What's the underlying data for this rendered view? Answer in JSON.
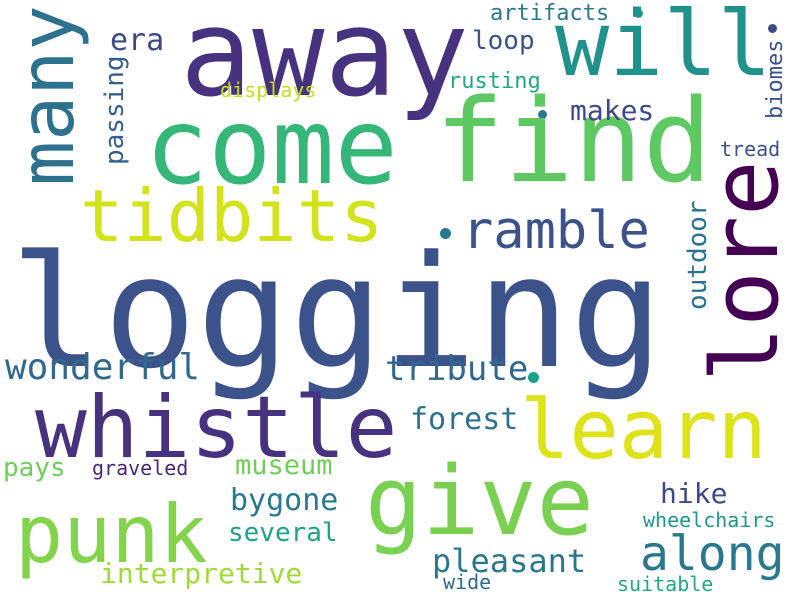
{
  "words": [
    {
      "text": "logging",
      "color": "#3b528b"
    },
    {
      "text": "away",
      "color": "#46327e"
    },
    {
      "text": "come",
      "color": "#35b779"
    },
    {
      "text": "find",
      "color": "#5ec962"
    },
    {
      "text": "will",
      "color": "#21918c"
    },
    {
      "text": "many",
      "color": "#2c728e"
    },
    {
      "text": "lore",
      "color": "#440154"
    },
    {
      "text": "tidbits",
      "color": "#d2e21b"
    },
    {
      "text": "ramble",
      "color": "#3b528b"
    },
    {
      "text": "whistle",
      "color": "#46327e"
    },
    {
      "text": "learn",
      "color": "#dde318"
    },
    {
      "text": "give",
      "color": "#7ad151"
    },
    {
      "text": "punk",
      "color": "#84d44b"
    },
    {
      "text": "along",
      "color": "#2a788e"
    },
    {
      "text": "tribute",
      "color": "#31688e"
    },
    {
      "text": "wonderful",
      "color": "#31688e"
    },
    {
      "text": "forest",
      "color": "#2c728e"
    },
    {
      "text": "museum",
      "color": "#6ece58"
    },
    {
      "text": "pleasant",
      "color": "#2a788e"
    },
    {
      "text": "interpretive",
      "color": "#a0da39"
    },
    {
      "text": "several",
      "color": "#1fa187"
    },
    {
      "text": "bygone",
      "color": "#2a788e"
    },
    {
      "text": "hike",
      "color": "#3e4989"
    },
    {
      "text": "makes",
      "color": "#3e4989"
    },
    {
      "text": "loop",
      "color": "#3b528b"
    },
    {
      "text": "era",
      "color": "#3e4989"
    },
    {
      "text": "outdoor",
      "color": "#2c728e"
    },
    {
      "text": "passing",
      "color": "#355f8d"
    },
    {
      "text": "artifacts",
      "color": "#2a788e"
    },
    {
      "text": "rusting",
      "color": "#22a884"
    },
    {
      "text": "displays",
      "color": "#c2df23"
    },
    {
      "text": "biomes",
      "color": "#3b528b"
    },
    {
      "text": "tread",
      "color": "#3b528b"
    },
    {
      "text": "pays",
      "color": "#6ece58"
    },
    {
      "text": "graveled",
      "color": "#482878"
    },
    {
      "text": "wheelchairs",
      "color": "#1f988b"
    },
    {
      "text": "suitable",
      "color": "#22a884"
    },
    {
      "text": "wide",
      "color": "#31688e"
    }
  ]
}
